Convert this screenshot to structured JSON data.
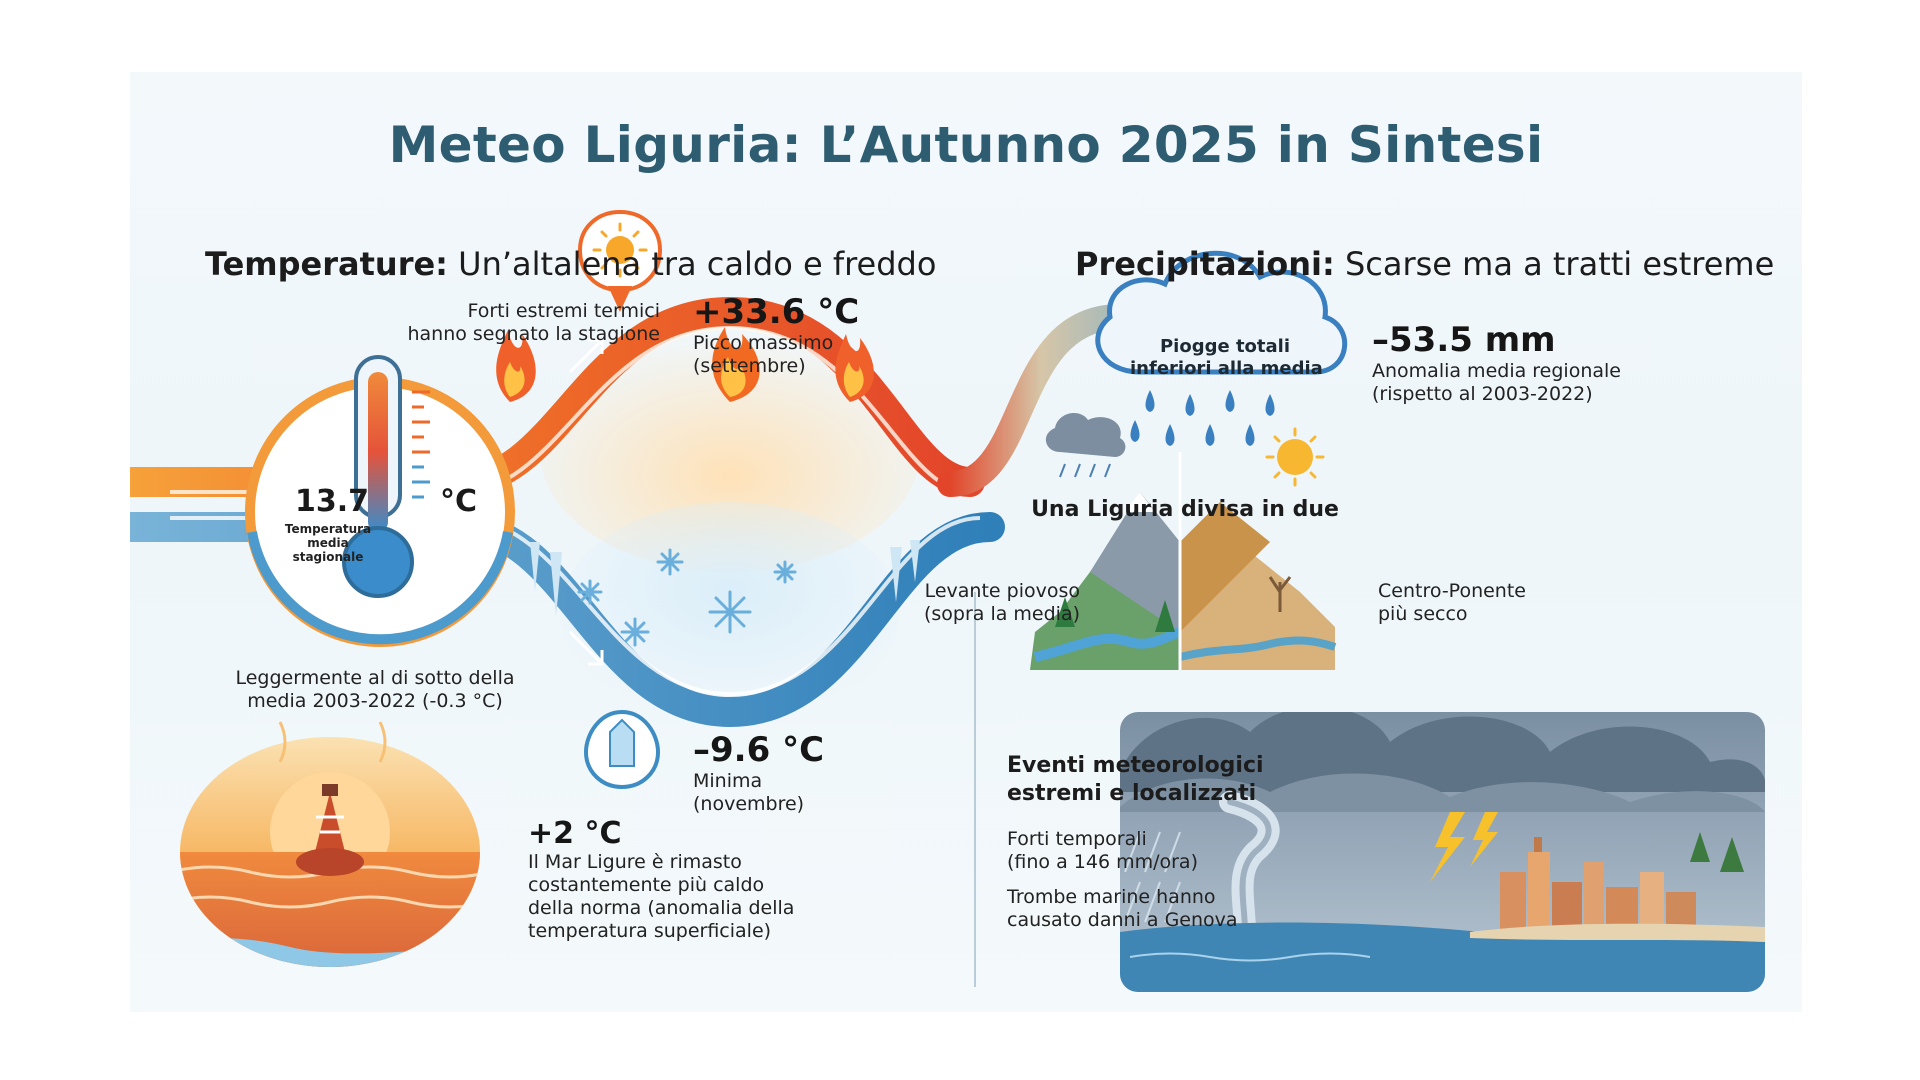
{
  "title": "Meteo Liguria: L’Autunno 2025 in Sintesi",
  "temperature": {
    "heading_bold": "Temperature:",
    "heading_rest": " Un’altalena tra caldo e freddo",
    "extremes_note_line1": "Forti estremi termici",
    "extremes_note_line2": "hanno segnato la stagione",
    "max_value": "+33.6 °C",
    "max_label_line1": "Picco massimo",
    "max_label_line2": "(settembre)",
    "mean_value": "13.7",
    "mean_unit": "°C",
    "mean_label_line1": "Temperatura",
    "mean_label_line2": "media",
    "mean_label_line3": "stagionale",
    "mean_note_line1": "Leggermente al di sotto della",
    "mean_note_line2": "media 2003-2022 (-0.3 °C)",
    "min_value": "–9.6 °C",
    "min_label_line1": "Minima",
    "min_label_line2": "(novembre)",
    "sea_value": "+2 °C",
    "sea_note_line1": "Il Mar Ligure è rimasto",
    "sea_note_line2": "costantemente più caldo",
    "sea_note_line3": "della norma (anomalia della",
    "sea_note_line4": "temperatura superficiale)"
  },
  "precipitation": {
    "heading_bold": "Precipitazioni:",
    "heading_rest": " Scarse ma a tratti estreme",
    "cloud_line1": "Piogge totali",
    "cloud_line2": "inferiori alla media",
    "anomaly_value": "–53.5 mm",
    "anomaly_line1": "Anomalia media regionale",
    "anomaly_line2": "(rispetto al 2003-2022)",
    "divided_heading": "Una Liguria divisa in due",
    "levante_line1": "Levante piovoso",
    "levante_line2": "(sopra la media)",
    "ponente_line1": "Centro-Ponente",
    "ponente_line2": "più secco",
    "extreme_heading_line1": "Eventi meteorologici",
    "extreme_heading_line2": "estremi e localizzati",
    "storms_line1": "Forti temporali",
    "storms_line2": "(fino a 146 mm/ora)",
    "waterspout_line1": "Trombe marine hanno",
    "waterspout_line2": "causato danni a Genova"
  },
  "colors": {
    "title": "#2e5d72",
    "warm": "#ef6a2a",
    "cold": "#3d8dc4",
    "rain": "#3a7fbf"
  },
  "icons": [
    "thermometer-icon",
    "sun-icon",
    "flame-icon",
    "snowflake-icon",
    "ice-drop-icon",
    "rain-cloud-icon",
    "buoy-icon",
    "landscape-icon",
    "storm-icon"
  ]
}
